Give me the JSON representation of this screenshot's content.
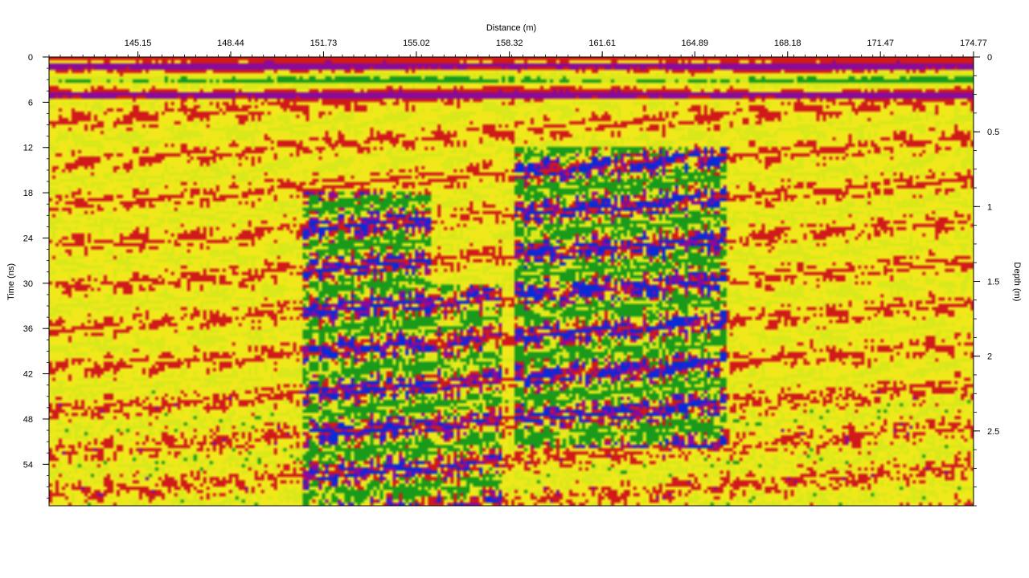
{
  "chart_data": {
    "type": "heatmap",
    "title": "",
    "xlabel": "Distance (m)",
    "ylabel_left": "Time (ns)",
    "ylabel_right": "Depth (m)",
    "x_range": [
      142.0,
      174.77
    ],
    "time_range_ns": [
      0,
      59.5
    ],
    "depth_range_m": [
      0,
      3.0
    ],
    "x_ticks": [
      "145.15",
      "148.44",
      "151.73",
      "155.02",
      "158.32",
      "161.61",
      "164.89",
      "168.18",
      "171.47",
      "174.77"
    ],
    "x_tick_values": [
      145.15,
      148.44,
      151.73,
      155.02,
      158.32,
      161.61,
      164.89,
      168.18,
      171.47,
      174.77
    ],
    "y_ticks_left": [
      "0",
      "6",
      "12",
      "18",
      "24",
      "30",
      "36",
      "42",
      "48",
      "54"
    ],
    "y_tick_values_left": [
      0,
      6,
      12,
      18,
      24,
      30,
      36,
      42,
      48,
      54
    ],
    "y_ticks_right": [
      "0",
      "0.5",
      "1",
      "1.5",
      "2",
      "2.5"
    ],
    "y_tick_values_right": [
      0,
      0.5,
      1,
      1.5,
      2,
      2.5
    ],
    "colormap": [
      "#0a2ad8",
      "#8a0a9a",
      "#d01a1a",
      "#f0e81a",
      "#f8f02a",
      "#d8e81a",
      "#1a9a1a"
    ],
    "surface_bands_ns": [
      {
        "t": 1.2,
        "amp": 0.9
      },
      {
        "t": 3.0,
        "amp": -0.7
      },
      {
        "t": 5.0,
        "amp": 1.0
      }
    ],
    "anomalies": [
      {
        "x_range": [
          151.0,
          155.5
        ],
        "t_range": [
          18,
          59.5
        ],
        "strength": "strong"
      },
      {
        "x_range": [
          155.5,
          158.0
        ],
        "t_range": [
          30,
          59.5
        ],
        "strength": "medium"
      },
      {
        "x_range": [
          158.5,
          166.0
        ],
        "t_range": [
          12,
          52
        ],
        "strength": "strong"
      }
    ]
  }
}
